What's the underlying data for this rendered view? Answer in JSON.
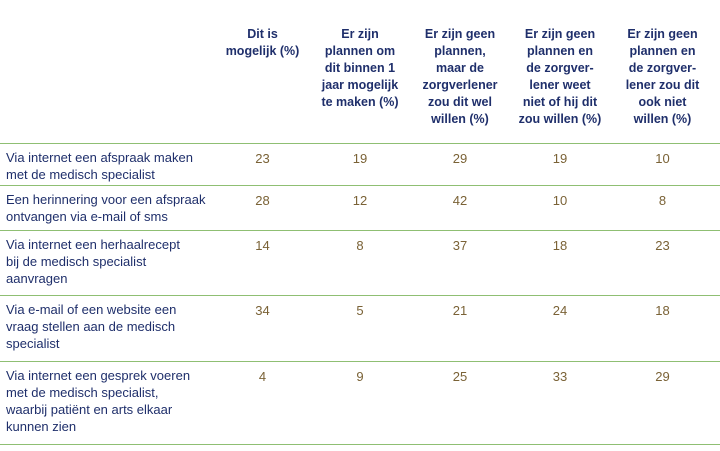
{
  "columns": [
    "Dit is\nmogelijk (%)",
    "Er zijn\nplannen om\ndit binnen 1\njaar mogelijk\nte maken (%)",
    "Er zijn geen\nplannen,\nmaar de\nzorgverlener\nzou dit wel\nwillen (%)",
    "Er zijn geen\nplannen en\nde zorgver-\nlener weet\nniet of hij dit\nzou willen (%)",
    "Er zijn geen\nplannen en\nde zorgver-\nlener zou dit\nook niet\nwillen (%)"
  ],
  "rows": [
    {
      "label": "Via internet een afspraak maken\nmet de medisch specialist",
      "values": [
        "23",
        "19",
        "29",
        "19",
        "10"
      ]
    },
    {
      "label": "Een herinnering voor een afspraak\nontvangen via e-mail of sms",
      "values": [
        "28",
        "12",
        "42",
        "10",
        "8"
      ]
    },
    {
      "label": "Via internet een herhaalrecept\nbij de medisch specialist\naanvragen",
      "values": [
        "14",
        "8",
        "37",
        "18",
        "23"
      ]
    },
    {
      "label": "Via e-mail of een website een\nvraag stellen aan de medisch\nspecialist",
      "values": [
        "34",
        "5",
        "21",
        "24",
        "18"
      ]
    },
    {
      "label": "Via internet een gesprek voeren\nmet de medisch specialist,\nwaarbij patiënt en arts elkaar\nkunnen zien",
      "values": [
        "4",
        "9",
        "25",
        "33",
        "29"
      ]
    }
  ],
  "colors": {
    "header_text": "#1f2f6b",
    "value_text": "#7a6236",
    "rule": "#8fbf73"
  }
}
